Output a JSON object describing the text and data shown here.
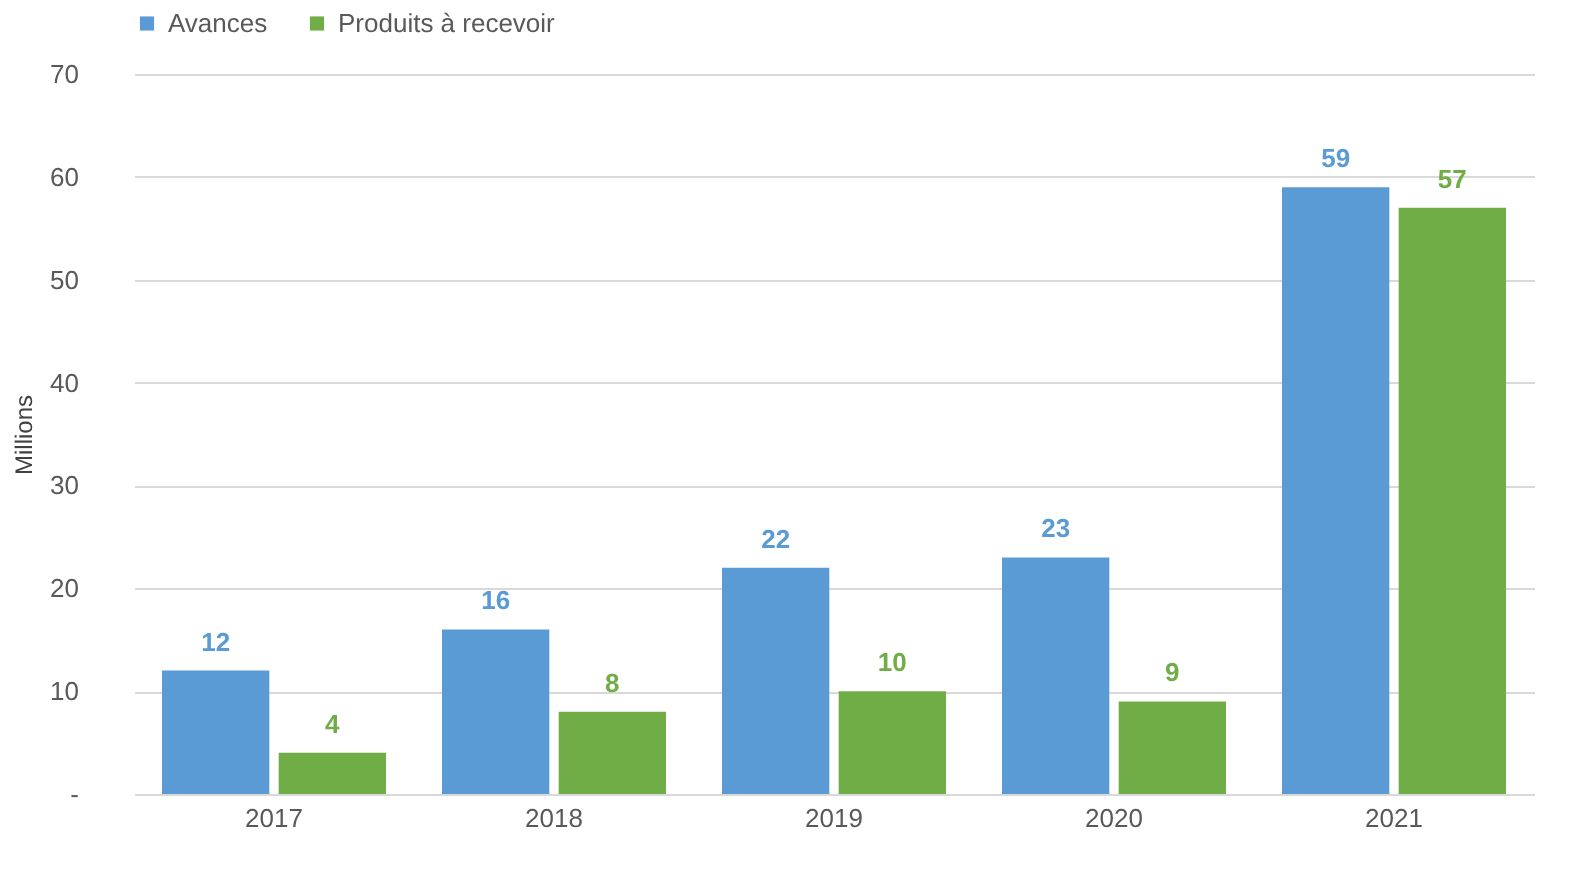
{
  "chart_data": {
    "type": "bar",
    "ylabel": "Millions",
    "categories": [
      "2017",
      "2018",
      "2019",
      "2020",
      "2021"
    ],
    "series": [
      {
        "name": "Avances",
        "color": "#5b9bd5",
        "values": [
          12,
          16,
          22,
          23,
          59
        ]
      },
      {
        "name": "Produits à recevoir",
        "color": "#70ad47",
        "values": [
          4,
          8,
          10,
          9,
          57
        ]
      }
    ],
    "ylim": [
      0,
      70
    ],
    "yticks": [
      {
        "value": 0,
        "label": "-"
      },
      10,
      20,
      30,
      40,
      50,
      60,
      70
    ],
    "grid": "y",
    "legend": "top",
    "data_labels": true
  }
}
